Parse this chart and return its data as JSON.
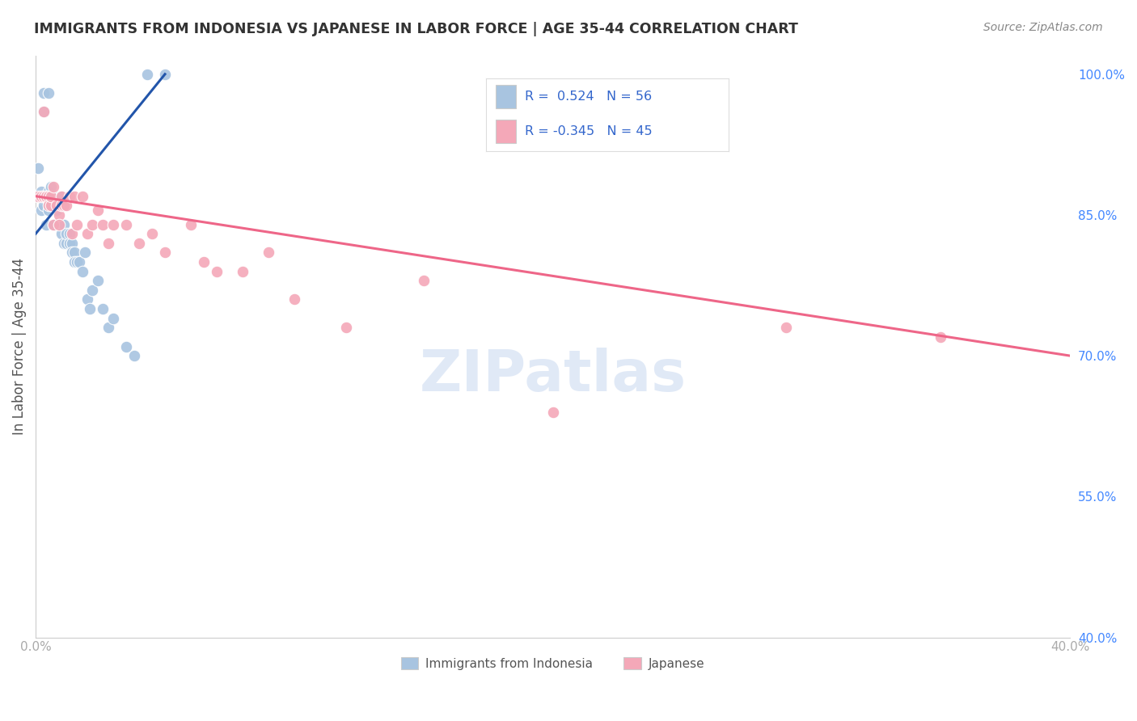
{
  "title": "IMMIGRANTS FROM INDONESIA VS JAPANESE IN LABOR FORCE | AGE 35-44 CORRELATION CHART",
  "source": "Source: ZipAtlas.com",
  "ylabel": "In Labor Force | Age 35-44",
  "xlim": [
    0.0,
    0.4
  ],
  "ylim": [
    0.4,
    1.02
  ],
  "xtick_positions": [
    0.0,
    0.05,
    0.1,
    0.15,
    0.2,
    0.25,
    0.3,
    0.35,
    0.4
  ],
  "xticklabels": [
    "0.0%",
    "",
    "",
    "",
    "",
    "",
    "",
    "",
    "40.0%"
  ],
  "yticks_right": [
    1.0,
    0.85,
    0.7,
    0.55,
    0.4
  ],
  "ytick_labels_right": [
    "100.0%",
    "85.0%",
    "70.0%",
    "55.0%",
    "40.0%"
  ],
  "background_color": "#ffffff",
  "grid_color": "#dddddd",
  "color_blue": "#a8c4e0",
  "color_pink": "#f4a8b8",
  "line_blue": "#2255aa",
  "line_pink": "#ee6688",
  "indonesia_x": [
    0.001,
    0.001,
    0.002,
    0.002,
    0.002,
    0.003,
    0.003,
    0.003,
    0.003,
    0.004,
    0.004,
    0.004,
    0.005,
    0.005,
    0.005,
    0.005,
    0.005,
    0.006,
    0.006,
    0.006,
    0.007,
    0.007,
    0.007,
    0.008,
    0.008,
    0.008,
    0.009,
    0.009,
    0.01,
    0.01,
    0.01,
    0.011,
    0.011,
    0.012,
    0.012,
    0.013,
    0.013,
    0.014,
    0.014,
    0.015,
    0.015,
    0.016,
    0.017,
    0.018,
    0.019,
    0.02,
    0.021,
    0.022,
    0.024,
    0.026,
    0.028,
    0.03,
    0.035,
    0.038,
    0.043,
    0.05
  ],
  "indonesia_y": [
    0.87,
    0.9,
    0.855,
    0.87,
    0.875,
    0.96,
    0.98,
    0.86,
    0.87,
    0.87,
    0.84,
    0.87,
    0.87,
    0.875,
    0.865,
    0.855,
    0.98,
    0.88,
    0.86,
    0.87,
    0.84,
    0.87,
    0.86,
    0.855,
    0.86,
    0.865,
    0.84,
    0.87,
    0.86,
    0.83,
    0.87,
    0.82,
    0.84,
    0.82,
    0.83,
    0.83,
    0.82,
    0.82,
    0.81,
    0.81,
    0.8,
    0.8,
    0.8,
    0.79,
    0.81,
    0.76,
    0.75,
    0.77,
    0.78,
    0.75,
    0.73,
    0.74,
    0.71,
    0.7,
    1.0,
    1.0
  ],
  "japanese_x": [
    0.001,
    0.002,
    0.003,
    0.003,
    0.004,
    0.004,
    0.005,
    0.005,
    0.006,
    0.006,
    0.007,
    0.007,
    0.008,
    0.009,
    0.009,
    0.01,
    0.01,
    0.011,
    0.012,
    0.013,
    0.014,
    0.015,
    0.016,
    0.018,
    0.02,
    0.022,
    0.024,
    0.026,
    0.028,
    0.03,
    0.035,
    0.04,
    0.045,
    0.05,
    0.06,
    0.065,
    0.07,
    0.08,
    0.09,
    0.1,
    0.12,
    0.15,
    0.2,
    0.29,
    0.35
  ],
  "japanese_y": [
    0.87,
    0.87,
    0.96,
    0.87,
    0.87,
    0.87,
    0.87,
    0.86,
    0.86,
    0.87,
    0.88,
    0.84,
    0.86,
    0.85,
    0.84,
    0.87,
    0.86,
    0.86,
    0.86,
    0.87,
    0.83,
    0.87,
    0.84,
    0.87,
    0.83,
    0.84,
    0.855,
    0.84,
    0.82,
    0.84,
    0.84,
    0.82,
    0.83,
    0.81,
    0.84,
    0.8,
    0.79,
    0.79,
    0.81,
    0.76,
    0.73,
    0.78,
    0.64,
    0.73,
    0.72
  ],
  "blue_line_x": [
    0.0,
    0.05
  ],
  "blue_line_y": [
    0.83,
    1.0
  ],
  "pink_line_x": [
    0.0,
    0.4
  ],
  "pink_line_y": [
    0.87,
    0.7
  ]
}
